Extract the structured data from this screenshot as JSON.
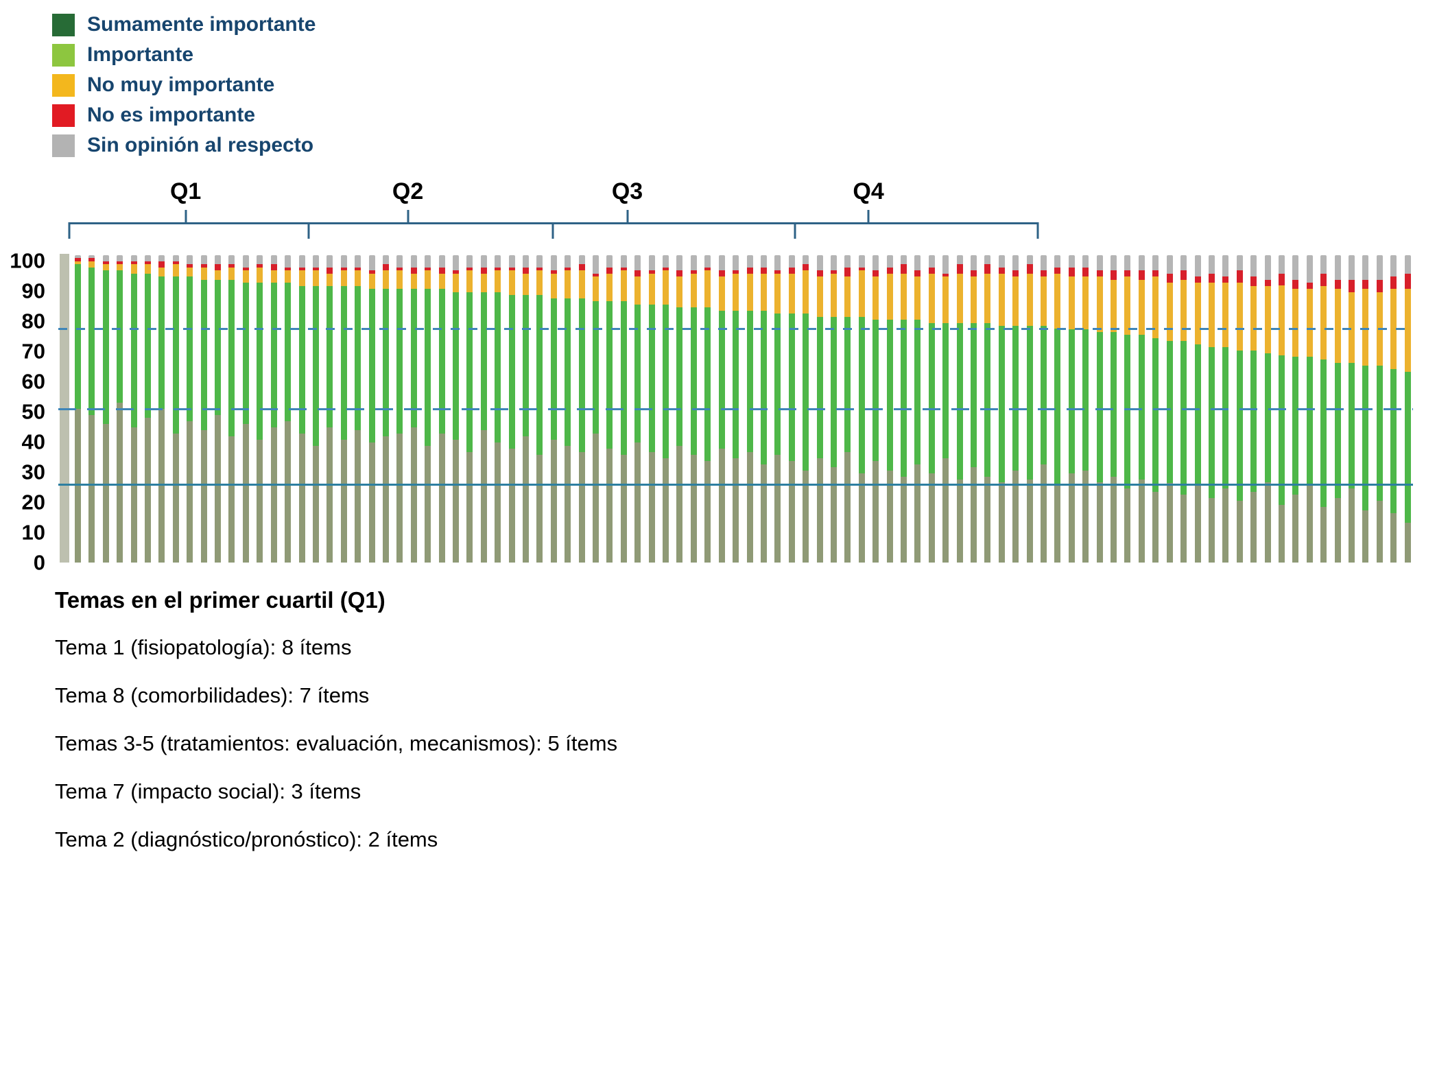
{
  "legend": {
    "text_color": "#17456e",
    "items": [
      {
        "label": "Sumamente importante",
        "color": "#276b36"
      },
      {
        "label": "Importante",
        "color": "#8dc63f"
      },
      {
        "label": "No muy importante",
        "color": "#f3b71d"
      },
      {
        "label": "No es importante",
        "color": "#e11b23"
      },
      {
        "label": "Sin opinión al respecto",
        "color": "#b3b3b3"
      }
    ]
  },
  "chart_data": {
    "type": "bar",
    "stacked": true,
    "n_bars": 96,
    "ylim": [
      0,
      100
    ],
    "yticks": [
      100,
      90,
      80,
      70,
      60,
      50,
      40,
      30,
      20,
      10,
      0
    ],
    "group_labels": [
      "Q1",
      "Q2",
      "Q3",
      "Q4"
    ],
    "bracket_color": "#2e6286",
    "reference_lines": [
      {
        "y": 77,
        "style": "dashed",
        "color": "#3e85b8"
      },
      {
        "y": 50.5,
        "style": "long-dashed",
        "color": "#3e85b8"
      },
      {
        "y": 25.5,
        "style": "solid",
        "color": "#2d7fa0"
      }
    ],
    "series": [
      {
        "name": "Sumamente importante",
        "bar_color": "#8f9a76",
        "values": [
          50,
          48,
          45,
          52,
          44,
          47,
          50,
          42,
          46,
          43,
          48,
          41,
          45,
          40,
          44,
          46,
          42,
          38,
          44,
          40,
          43,
          39,
          41,
          42,
          44,
          38,
          42,
          40,
          36,
          43,
          39,
          37,
          41,
          35,
          40,
          38,
          36,
          42,
          37,
          35,
          39,
          36,
          34,
          38,
          35,
          33,
          37,
          34,
          36,
          32,
          35,
          33,
          30,
          34,
          31,
          36,
          29,
          33,
          30,
          28,
          32,
          29,
          34,
          27,
          31,
          28,
          26,
          30,
          27,
          32,
          25,
          29,
          30,
          26,
          28,
          24,
          27,
          23,
          26,
          22,
          25,
          21,
          24,
          20,
          23,
          26,
          19,
          22,
          25,
          18,
          21,
          24,
          17,
          20,
          16,
          13
        ]
      },
      {
        "name": "Importante",
        "bar_color": "#4eb748",
        "values": [
          47,
          48,
          50,
          43,
          50,
          47,
          43,
          51,
          47,
          49,
          44,
          51,
          46,
          51,
          47,
          45,
          48,
          52,
          46,
          50,
          47,
          50,
          48,
          47,
          45,
          51,
          47,
          48,
          52,
          45,
          49,
          50,
          46,
          52,
          46,
          48,
          50,
          43,
          48,
          50,
          45,
          48,
          50,
          45,
          48,
          50,
          45,
          48,
          46,
          50,
          46,
          48,
          51,
          46,
          49,
          44,
          51,
          46,
          49,
          51,
          47,
          49,
          44,
          51,
          47,
          50,
          51,
          47,
          50,
          45,
          51,
          47,
          46,
          49,
          47,
          50,
          47,
          50,
          46,
          50,
          46,
          49,
          46,
          49,
          46,
          42,
          49,
          45,
          42,
          48,
          44,
          41,
          47,
          44,
          47,
          49
        ]
      },
      {
        "name": "No muy importante",
        "bar_color": "#ecb22e",
        "values": [
          1,
          2,
          2,
          2,
          3,
          3,
          3,
          4,
          3,
          4,
          3,
          4,
          4,
          5,
          4,
          4,
          5,
          5,
          4,
          5,
          5,
          5,
          6,
          6,
          5,
          6,
          5,
          6,
          7,
          6,
          7,
          8,
          7,
          8,
          8,
          9,
          9,
          8,
          9,
          10,
          9,
          10,
          11,
          10,
          11,
          12,
          11,
          12,
          12,
          12,
          13,
          13,
          14,
          13,
          14,
          13,
          15,
          14,
          15,
          15,
          14,
          16,
          15,
          16,
          15,
          16,
          17,
          16,
          17,
          16,
          18,
          17,
          17,
          18,
          17,
          19,
          18,
          20,
          19,
          20,
          20,
          21,
          21,
          22,
          21,
          22,
          23,
          22,
          22,
          24,
          24,
          23,
          25,
          24,
          26,
          27
        ]
      },
      {
        "name": "No es importante",
        "bar_color": "#d7202a",
        "values": [
          1,
          1,
          1,
          1,
          1,
          1,
          2,
          1,
          1,
          1,
          2,
          1,
          1,
          1,
          2,
          1,
          1,
          1,
          2,
          1,
          1,
          1,
          2,
          1,
          2,
          1,
          2,
          1,
          1,
          2,
          1,
          1,
          2,
          1,
          1,
          1,
          2,
          1,
          2,
          1,
          2,
          1,
          1,
          2,
          1,
          1,
          2,
          1,
          2,
          2,
          1,
          2,
          2,
          2,
          1,
          3,
          1,
          2,
          2,
          3,
          2,
          2,
          1,
          3,
          2,
          3,
          2,
          2,
          3,
          2,
          2,
          3,
          3,
          2,
          3,
          2,
          3,
          2,
          3,
          3,
          2,
          3,
          2,
          4,
          3,
          2,
          4,
          3,
          2,
          4,
          3,
          4,
          3,
          4,
          4,
          5
        ]
      },
      {
        "name": "Sin opinión al respecto",
        "bar_color": "#b5b5b5",
        "values": [
          1,
          1,
          2,
          2,
          2,
          2,
          2,
          2,
          3,
          3,
          3,
          3,
          4,
          3,
          3,
          4,
          4,
          4,
          4,
          4,
          4,
          5,
          3,
          4,
          4,
          4,
          4,
          5,
          4,
          4,
          4,
          4,
          4,
          4,
          5,
          4,
          3,
          6,
          4,
          4,
          5,
          5,
          4,
          5,
          5,
          4,
          5,
          5,
          4,
          4,
          5,
          4,
          3,
          5,
          5,
          4,
          4,
          5,
          4,
          3,
          5,
          4,
          6,
          3,
          5,
          3,
          4,
          5,
          3,
          5,
          4,
          4,
          4,
          5,
          5,
          5,
          5,
          5,
          6,
          5,
          7,
          6,
          7,
          5,
          7,
          8,
          6,
          8,
          9,
          6,
          8,
          8,
          8,
          8,
          7,
          6
        ]
      }
    ]
  },
  "footer": {
    "title": "Temas en el primer cuartil (Q1)",
    "lines": [
      "Tema 1 (fisiopatología): 8 ítems",
      "Tema 8 (comorbilidades): 7 ítems",
      "Temas 3-5 (tratamientos: evaluación, mecanismos): 5 ítems",
      "Tema 7 (impacto social): 3 ítems",
      "Tema 2 (diagnóstico/pronóstico): 2 ítems"
    ]
  }
}
